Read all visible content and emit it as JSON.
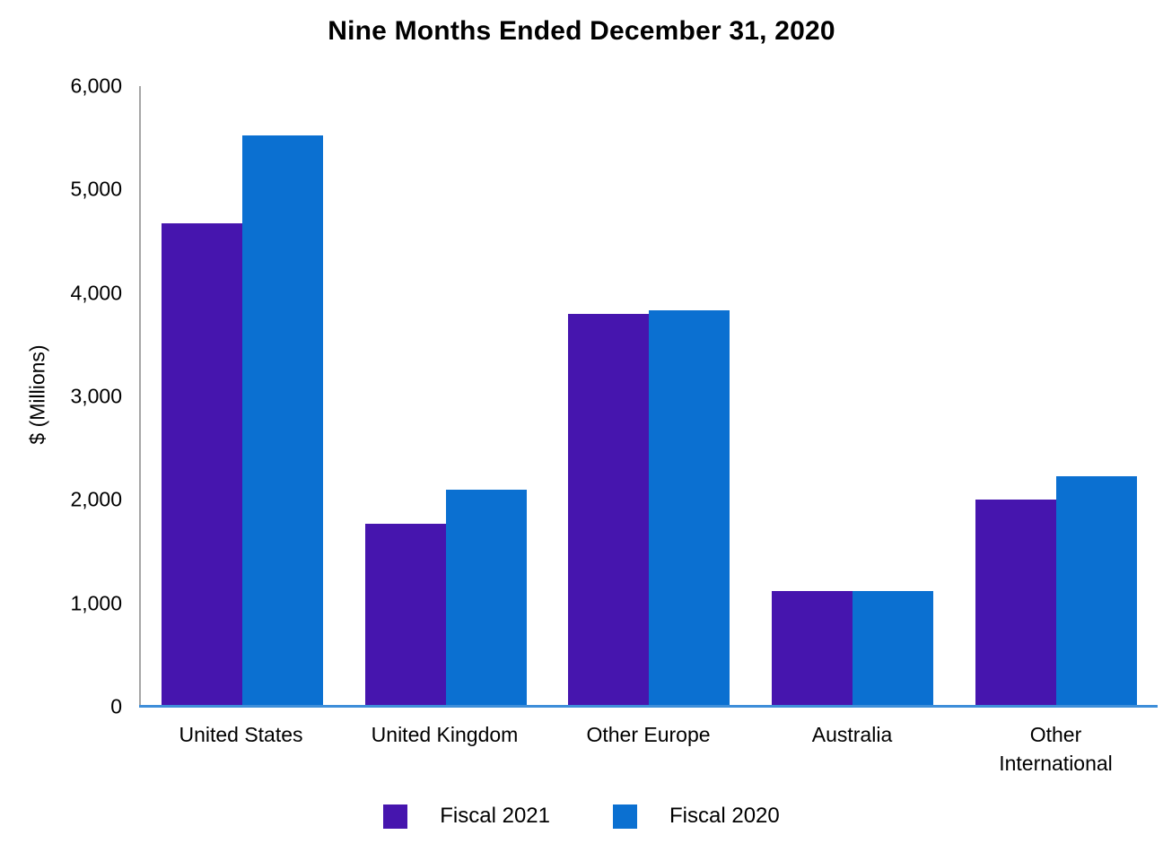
{
  "title": "Nine Months Ended December 31, 2020",
  "chart_data": {
    "type": "bar",
    "title": "Nine Months Ended December 31, 2020",
    "xlabel": "",
    "ylabel": "$ (Millions)",
    "categories": [
      "United States",
      "United Kingdom",
      "Other Europe",
      "Australia",
      "Other International"
    ],
    "series": [
      {
        "name": "Fiscal 2021",
        "color": "#4615AE",
        "values": [
          4675,
          1765,
          3800,
          1120,
          2005
        ]
      },
      {
        "name": "Fiscal 2020",
        "color": "#0B70D1",
        "values": [
          5520,
          2095,
          3835,
          1120,
          2230
        ]
      }
    ],
    "ylim": [
      0,
      6000
    ],
    "yticks": [
      0,
      1000,
      2000,
      3000,
      4000,
      5000,
      6000
    ],
    "grid": false,
    "legend_position": "bottom",
    "colors": {
      "y_axis_line": "#A6A6A6",
      "x_axis_line": "#3E8ED9",
      "text": "#000000",
      "background": "#FFFFFF"
    }
  }
}
